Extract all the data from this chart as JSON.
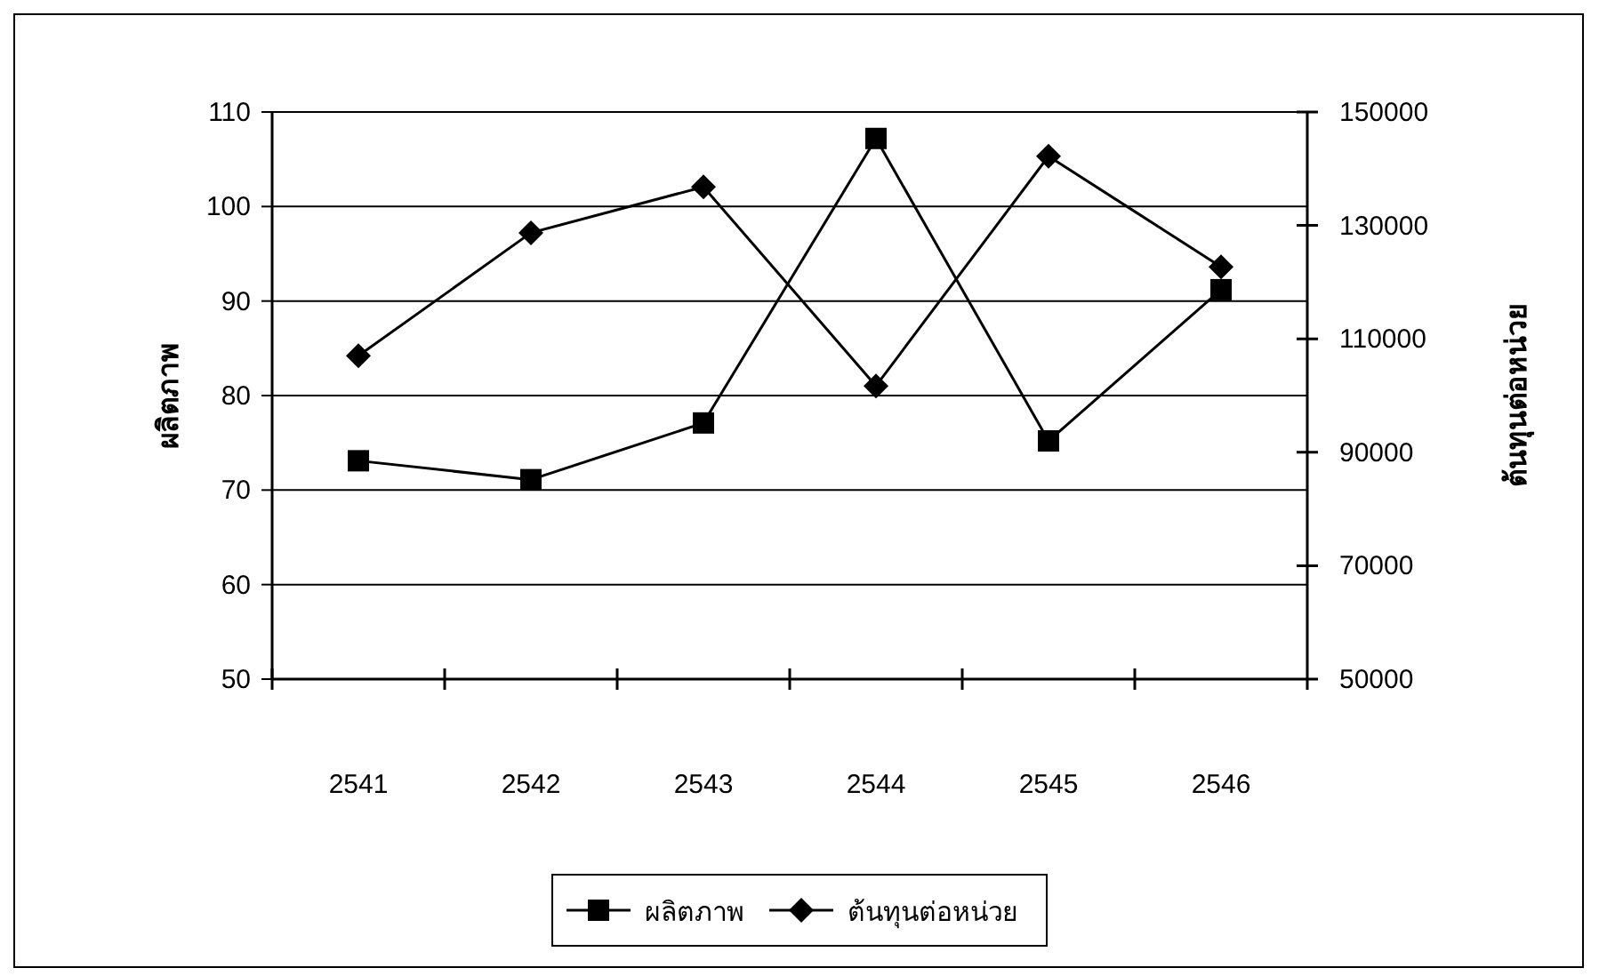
{
  "chart_data": {
    "type": "line",
    "categories": [
      "2541",
      "2542",
      "2543",
      "2544",
      "2545",
      "2546"
    ],
    "series": [
      {
        "name": "ผลิตภาพ",
        "color": "#000000",
        "marker": "square",
        "values": [
          73.1,
          71.1,
          77.1,
          107.2,
          75.2,
          91.2
        ]
      },
      {
        "name": "ต้นทุนต่อหน่วย",
        "color": "#000000",
        "marker": "diamond",
        "axis": "y2",
        "values": [
          107000,
          128700,
          136800,
          101700,
          142200,
          122700
        ]
      }
    ],
    "ylabel": "ผลิตภาพ",
    "y2label": "ต้นทุนต่อหน่วย",
    "ylim": [
      50,
      110
    ],
    "yticks": [
      50,
      60,
      70,
      80,
      90,
      100,
      110
    ],
    "y2lim": [
      50000,
      150000
    ],
    "y2ticks": [
      50000,
      70000,
      90000,
      110000,
      130000,
      150000
    ],
    "grid": "y",
    "legend": "bottom",
    "line_style": "solid"
  }
}
